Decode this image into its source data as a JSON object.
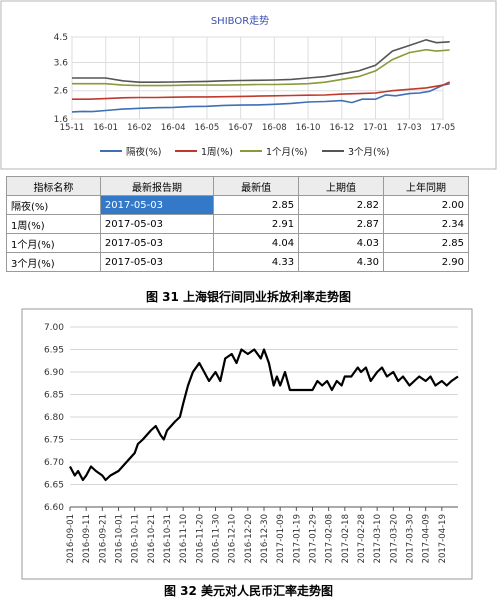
{
  "shibor": {
    "caption": "图 31 上海银行间同业拆放利率走势图",
    "chart_data": {
      "type": "line",
      "title": "SHIBOR走势",
      "ylim": [
        1.6,
        4.5
      ],
      "yticks": [
        1.6,
        2.6,
        3.6,
        4.5
      ],
      "x_ticks": [
        "15-11",
        "16-01",
        "16-02",
        "16-04",
        "16-05",
        "16-07",
        "16-08",
        "16-10",
        "16-12",
        "17-01",
        "17-03",
        "17-05"
      ],
      "grid": true,
      "legend_position": "bottom",
      "series": [
        {
          "name": "隔夜(%)",
          "color": "#3f6fb5",
          "points": [
            [
              0,
              1.85
            ],
            [
              0.3,
              1.87
            ],
            [
              0.6,
              1.86
            ],
            [
              1,
              1.9
            ],
            [
              1.5,
              1.95
            ],
            [
              2,
              1.98
            ],
            [
              2.5,
              2.0
            ],
            [
              3,
              2.01
            ],
            [
              3.5,
              2.04
            ],
            [
              4,
              2.05
            ],
            [
              4.5,
              2.08
            ],
            [
              5,
              2.09
            ],
            [
              5.5,
              2.1
            ],
            [
              6,
              2.12
            ],
            [
              6.5,
              2.15
            ],
            [
              7,
              2.2
            ],
            [
              7.5,
              2.22
            ],
            [
              8,
              2.25
            ],
            [
              8.3,
              2.18
            ],
            [
              8.6,
              2.3
            ],
            [
              9,
              2.3
            ],
            [
              9.3,
              2.45
            ],
            [
              9.6,
              2.42
            ],
            [
              10,
              2.5
            ],
            [
              10.3,
              2.52
            ],
            [
              10.6,
              2.58
            ],
            [
              11,
              2.8
            ],
            [
              11.2,
              2.85
            ]
          ]
        },
        {
          "name": "1周(%)",
          "color": "#c0392b",
          "points": [
            [
              0,
              2.3
            ],
            [
              0.5,
              2.3
            ],
            [
              1,
              2.32
            ],
            [
              1.5,
              2.35
            ],
            [
              2,
              2.36
            ],
            [
              2.5,
              2.36
            ],
            [
              3,
              2.37
            ],
            [
              3.5,
              2.38
            ],
            [
              4,
              2.38
            ],
            [
              4.5,
              2.39
            ],
            [
              5,
              2.4
            ],
            [
              5.5,
              2.41
            ],
            [
              6,
              2.42
            ],
            [
              6.5,
              2.43
            ],
            [
              7,
              2.44
            ],
            [
              7.5,
              2.45
            ],
            [
              8,
              2.48
            ],
            [
              8.5,
              2.5
            ],
            [
              9,
              2.52
            ],
            [
              9.5,
              2.6
            ],
            [
              10,
              2.65
            ],
            [
              10.5,
              2.7
            ],
            [
              11,
              2.8
            ],
            [
              11.2,
              2.91
            ]
          ]
        },
        {
          "name": "1个月(%)",
          "color": "#8a9a3a",
          "points": [
            [
              0,
              2.85
            ],
            [
              0.5,
              2.85
            ],
            [
              1,
              2.85
            ],
            [
              1.5,
              2.8
            ],
            [
              2,
              2.78
            ],
            [
              2.5,
              2.78
            ],
            [
              3,
              2.79
            ],
            [
              3.5,
              2.8
            ],
            [
              4,
              2.8
            ],
            [
              4.5,
              2.8
            ],
            [
              5,
              2.81
            ],
            [
              5.5,
              2.82
            ],
            [
              6,
              2.82
            ],
            [
              6.5,
              2.83
            ],
            [
              7,
              2.85
            ],
            [
              7.5,
              2.9
            ],
            [
              8,
              3.0
            ],
            [
              8.5,
              3.1
            ],
            [
              9,
              3.3
            ],
            [
              9.5,
              3.7
            ],
            [
              10,
              3.95
            ],
            [
              10.5,
              4.05
            ],
            [
              10.8,
              4.0
            ],
            [
              11.2,
              4.04
            ]
          ]
        },
        {
          "name": "3个月(%)",
          "color": "#555555",
          "points": [
            [
              0,
              3.05
            ],
            [
              0.5,
              3.05
            ],
            [
              1,
              3.05
            ],
            [
              1.5,
              2.95
            ],
            [
              2,
              2.9
            ],
            [
              2.5,
              2.9
            ],
            [
              3,
              2.91
            ],
            [
              3.5,
              2.92
            ],
            [
              4,
              2.93
            ],
            [
              4.5,
              2.95
            ],
            [
              5,
              2.96
            ],
            [
              5.5,
              2.97
            ],
            [
              6,
              2.98
            ],
            [
              6.5,
              3.0
            ],
            [
              7,
              3.05
            ],
            [
              7.5,
              3.1
            ],
            [
              8,
              3.2
            ],
            [
              8.5,
              3.3
            ],
            [
              9,
              3.5
            ],
            [
              9.5,
              4.0
            ],
            [
              10,
              4.2
            ],
            [
              10.5,
              4.4
            ],
            [
              10.8,
              4.3
            ],
            [
              11.2,
              4.33
            ]
          ]
        }
      ]
    },
    "table": {
      "headers": [
        "指标名称",
        "最新报告期",
        "最新值",
        "上期值",
        "上年同期"
      ],
      "rows": [
        [
          "隔夜(%)",
          "2017-05-03",
          "2.85",
          "2.82",
          "2.00"
        ],
        [
          "1周(%)",
          "2017-05-03",
          "2.91",
          "2.87",
          "2.34"
        ],
        [
          "1个月(%)",
          "2017-05-03",
          "4.04",
          "4.03",
          "2.85"
        ],
        [
          "3个月(%)",
          "2017-05-03",
          "4.33",
          "4.30",
          "2.90"
        ]
      ]
    }
  },
  "cny": {
    "caption": "图 32 美元对人民币汇率走势图",
    "chart_data": {
      "type": "line",
      "ylim": [
        6.6,
        7.0
      ],
      "yticks": [
        "6.60",
        "6.65",
        "6.70",
        "6.75",
        "6.80",
        "6.85",
        "6.90",
        "6.95",
        "7.00"
      ],
      "categories": [
        "2016-09-01",
        "2016-09-11",
        "2016-09-21",
        "2016-10-01",
        "2016-10-11",
        "2016-10-21",
        "2016-10-31",
        "2016-11-10",
        "2016-11-20",
        "2016-11-30",
        "2016-12-10",
        "2016-12-20",
        "2016-12-30",
        "2017-01-09",
        "2017-01-19",
        "2017-01-29",
        "2017-02-08",
        "2017-02-18",
        "2017-02-28",
        "2017-03-10",
        "2017-03-20",
        "2017-03-30",
        "2017-04-09",
        "2017-04-19"
      ],
      "grid": true,
      "series": [
        {
          "color": "#000000",
          "points": [
            [
              0,
              6.69
            ],
            [
              0.3,
              6.67
            ],
            [
              0.5,
              6.68
            ],
            [
              0.8,
              6.66
            ],
            [
              1,
              6.67
            ],
            [
              1.3,
              6.69
            ],
            [
              1.6,
              6.68
            ],
            [
              2,
              6.67
            ],
            [
              2.2,
              6.66
            ],
            [
              2.5,
              6.67
            ],
            [
              3,
              6.68
            ],
            [
              3.5,
              6.7
            ],
            [
              4,
              6.72
            ],
            [
              4.2,
              6.74
            ],
            [
              4.5,
              6.75
            ],
            [
              5,
              6.77
            ],
            [
              5.3,
              6.78
            ],
            [
              5.6,
              6.76
            ],
            [
              5.8,
              6.75
            ],
            [
              6,
              6.77
            ],
            [
              6.5,
              6.79
            ],
            [
              6.8,
              6.8
            ],
            [
              7,
              6.83
            ],
            [
              7.3,
              6.87
            ],
            [
              7.6,
              6.9
            ],
            [
              8,
              6.92
            ],
            [
              8.3,
              6.9
            ],
            [
              8.6,
              6.88
            ],
            [
              9,
              6.9
            ],
            [
              9.3,
              6.88
            ],
            [
              9.6,
              6.93
            ],
            [
              10,
              6.94
            ],
            [
              10.3,
              6.92
            ],
            [
              10.6,
              6.95
            ],
            [
              11,
              6.94
            ],
            [
              11.4,
              6.95
            ],
            [
              11.8,
              6.93
            ],
            [
              12,
              6.95
            ],
            [
              12.3,
              6.92
            ],
            [
              12.6,
              6.87
            ],
            [
              12.8,
              6.89
            ],
            [
              13,
              6.87
            ],
            [
              13.3,
              6.9
            ],
            [
              13.6,
              6.86
            ],
            [
              14,
              6.86
            ],
            [
              14.5,
              6.86
            ],
            [
              15,
              6.86
            ],
            [
              15.3,
              6.88
            ],
            [
              15.6,
              6.87
            ],
            [
              15.9,
              6.88
            ],
            [
              16.2,
              6.86
            ],
            [
              16.5,
              6.88
            ],
            [
              16.8,
              6.87
            ],
            [
              17,
              6.89
            ],
            [
              17.4,
              6.89
            ],
            [
              17.8,
              6.91
            ],
            [
              18,
              6.9
            ],
            [
              18.3,
              6.91
            ],
            [
              18.6,
              6.88
            ],
            [
              19,
              6.9
            ],
            [
              19.3,
              6.91
            ],
            [
              19.6,
              6.89
            ],
            [
              20,
              6.9
            ],
            [
              20.3,
              6.88
            ],
            [
              20.6,
              6.89
            ],
            [
              21,
              6.87
            ],
            [
              21.3,
              6.88
            ],
            [
              21.6,
              6.89
            ],
            [
              22,
              6.88
            ],
            [
              22.3,
              6.89
            ],
            [
              22.6,
              6.87
            ],
            [
              23,
              6.88
            ],
            [
              23.3,
              6.87
            ],
            [
              23.6,
              6.88
            ],
            [
              24,
              6.89
            ]
          ]
        }
      ]
    }
  }
}
